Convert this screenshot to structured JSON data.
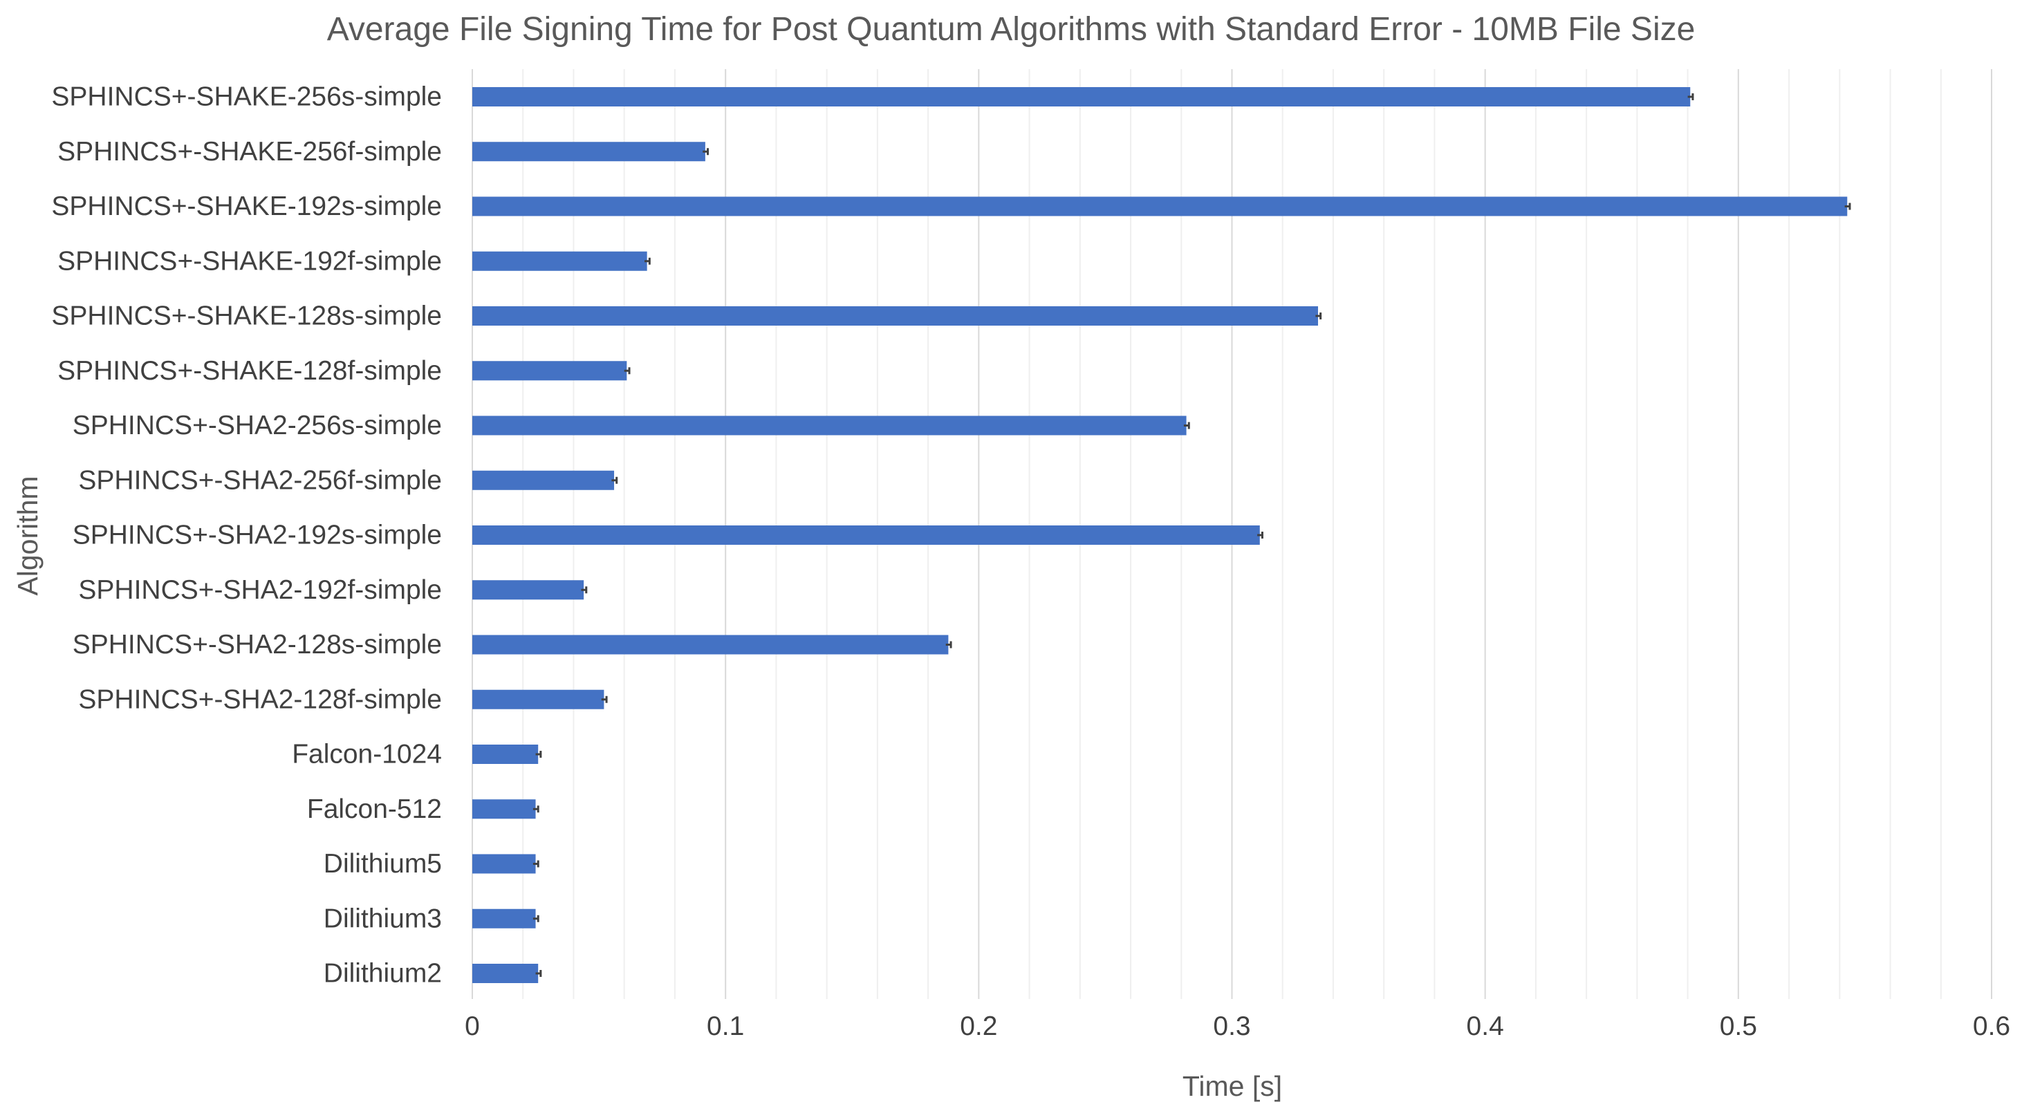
{
  "chart_data": {
    "type": "bar",
    "orientation": "horizontal",
    "title": "Average File Signing Time for Post Quantum Algorithms with Standard Error - 10MB File Size",
    "xlabel": "Time [s]",
    "ylabel": "Algorithm",
    "xlim": [
      0,
      0.6
    ],
    "major_ticks": [
      "0",
      "0.1",
      "0.2",
      "0.3",
      "0.4",
      "0.5",
      "0.6"
    ],
    "major_tick_values": [
      0,
      0.1,
      0.2,
      0.3,
      0.4,
      0.5,
      0.6
    ],
    "minor_step": 0.02,
    "grid": true,
    "legend": "none",
    "bar_color": "#4472c4",
    "error_bar_color": "#404040",
    "categories": [
      "SPHINCS+-SHAKE-256s-simple",
      "SPHINCS+-SHAKE-256f-simple",
      "SPHINCS+-SHAKE-192s-simple",
      "SPHINCS+-SHAKE-192f-simple",
      "SPHINCS+-SHAKE-128s-simple",
      "SPHINCS+-SHAKE-128f-simple",
      "SPHINCS+-SHA2-256s-simple",
      "SPHINCS+-SHA2-256f-simple",
      "SPHINCS+-SHA2-192s-simple",
      "SPHINCS+-SHA2-192f-simple",
      "SPHINCS+-SHA2-128s-simple",
      "SPHINCS+-SHA2-128f-simple",
      "Falcon-1024",
      "Falcon-512",
      "Dilithium5",
      "Dilithium3",
      "Dilithium2"
    ],
    "values": [
      0.481,
      0.092,
      0.543,
      0.069,
      0.334,
      0.061,
      0.282,
      0.056,
      0.311,
      0.044,
      0.188,
      0.052,
      0.026,
      0.025,
      0.025,
      0.025,
      0.026
    ],
    "errors": [
      0.001,
      0.001,
      0.001,
      0.001,
      0.001,
      0.001,
      0.001,
      0.001,
      0.001,
      0.001,
      0.001,
      0.001,
      0.001,
      0.001,
      0.001,
      0.001,
      0.001
    ]
  }
}
